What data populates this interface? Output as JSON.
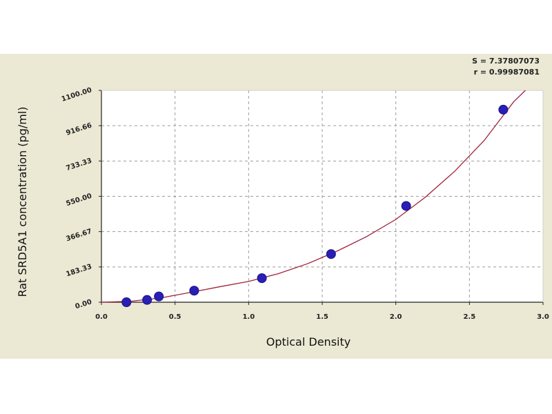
{
  "chart_data": {
    "type": "scatter",
    "xlabel": "Optical Density",
    "ylabel": "Rat SRD5A1 concentration (pg/ml)",
    "xlim": [
      0.0,
      3.0
    ],
    "ylim": [
      0.0,
      1100.0
    ],
    "x_ticks": [
      "0.0",
      "0.5",
      "1.0",
      "1.5",
      "2.0",
      "2.5",
      "3.0"
    ],
    "y_ticks": [
      "0.00",
      "183.33",
      "366.67",
      "550.00",
      "733.33",
      "916.66",
      "1100.00"
    ],
    "grid": true,
    "stats": [
      "S = 7.37807073",
      "r = 0.99987081"
    ],
    "series": [
      {
        "values": [
          {
            "x": 0.17,
            "y": 0
          },
          {
            "x": 0.31,
            "y": 12
          },
          {
            "x": 0.39,
            "y": 30
          },
          {
            "x": 0.63,
            "y": 60
          },
          {
            "x": 1.09,
            "y": 125
          },
          {
            "x": 1.56,
            "y": 250
          },
          {
            "x": 2.07,
            "y": 500
          },
          {
            "x": 2.73,
            "y": 1000
          }
        ]
      }
    ],
    "fit_curve": {
      "x": [
        0.0,
        0.2,
        0.4,
        0.6,
        0.8,
        1.0,
        1.2,
        1.4,
        1.6,
        1.8,
        2.0,
        2.2,
        2.4,
        2.6,
        2.8,
        2.88
      ],
      "y": [
        0,
        5,
        22,
        50,
        80,
        108,
        148,
        200,
        265,
        340,
        430,
        545,
        680,
        840,
        1040,
        1100
      ]
    },
    "colors": {
      "panel_bg": "#ebe8d4",
      "plot_bg": "#ffffff",
      "grid": "#9a9a9a",
      "curve": "#a0203a",
      "marker": "#2a1fb4"
    }
  }
}
